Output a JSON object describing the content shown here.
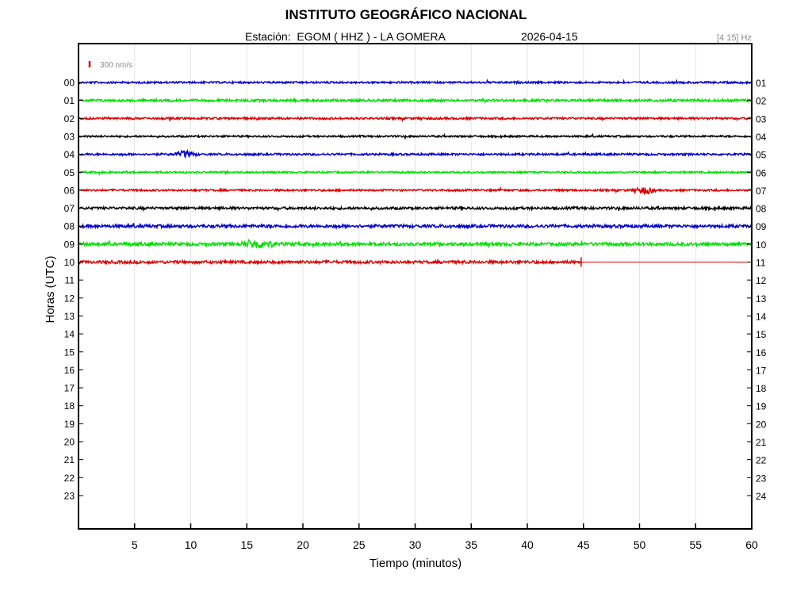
{
  "header": {
    "title": "INSTITUTO GEOGRÁFICO NACIONAL",
    "station": "Estación:  EGOM ( HHZ ) - LA GOMERA",
    "date": "2026-04-15",
    "band": "[4 15] Hz"
  },
  "chart_data": {
    "type": "line",
    "subtype": "helicorder",
    "xlabel": "Tiempo (minutos)",
    "ylabel": "Horas (UTC)",
    "xlim": [
      0,
      60
    ],
    "x_ticks": [
      5,
      10,
      15,
      20,
      25,
      30,
      35,
      40,
      45,
      50,
      55,
      60
    ],
    "scale_label": "300 nm/s",
    "scale_color": "#e00000",
    "grid": "vertical",
    "hours_left": [
      "00",
      "01",
      "02",
      "03",
      "04",
      "05",
      "06",
      "07",
      "08",
      "09",
      "10",
      "11",
      "12",
      "13",
      "14",
      "15",
      "16",
      "17",
      "18",
      "19",
      "20",
      "21",
      "22",
      "23"
    ],
    "hours_right": [
      "01",
      "02",
      "03",
      "04",
      "05",
      "06",
      "07",
      "08",
      "09",
      "10",
      "11",
      "12",
      "13",
      "14",
      "15",
      "16",
      "17",
      "18",
      "19",
      "20",
      "21",
      "22",
      "23",
      "24"
    ],
    "series": [
      {
        "hour": "00",
        "color": "#0000cc",
        "end_minute": 60,
        "amplitude": 1.2,
        "events": []
      },
      {
        "hour": "01",
        "color": "#00e000",
        "end_minute": 60,
        "amplitude": 1.5,
        "events": []
      },
      {
        "hour": "02",
        "color": "#dd0000",
        "end_minute": 60,
        "amplitude": 1.3,
        "events": []
      },
      {
        "hour": "03",
        "color": "#000000",
        "end_minute": 60,
        "amplitude": 1.1,
        "events": []
      },
      {
        "hour": "04",
        "color": "#0000cc",
        "end_minute": 60,
        "amplitude": 1.3,
        "events": [
          9.5
        ]
      },
      {
        "hour": "05",
        "color": "#00e000",
        "end_minute": 60,
        "amplitude": 1.1,
        "events": []
      },
      {
        "hour": "06",
        "color": "#dd0000",
        "end_minute": 60,
        "amplitude": 1.2,
        "events": [
          50.5
        ]
      },
      {
        "hour": "07",
        "color": "#000000",
        "end_minute": 60,
        "amplitude": 1.6,
        "events": []
      },
      {
        "hour": "08",
        "color": "#0000cc",
        "end_minute": 60,
        "amplitude": 1.9,
        "events": []
      },
      {
        "hour": "09",
        "color": "#00e000",
        "end_minute": 60,
        "amplitude": 2.0,
        "events": [
          15.3,
          16.6
        ]
      },
      {
        "hour": "10",
        "color": "#dd0000",
        "end_minute": 44.8,
        "amplitude": 1.8,
        "events": []
      }
    ]
  }
}
